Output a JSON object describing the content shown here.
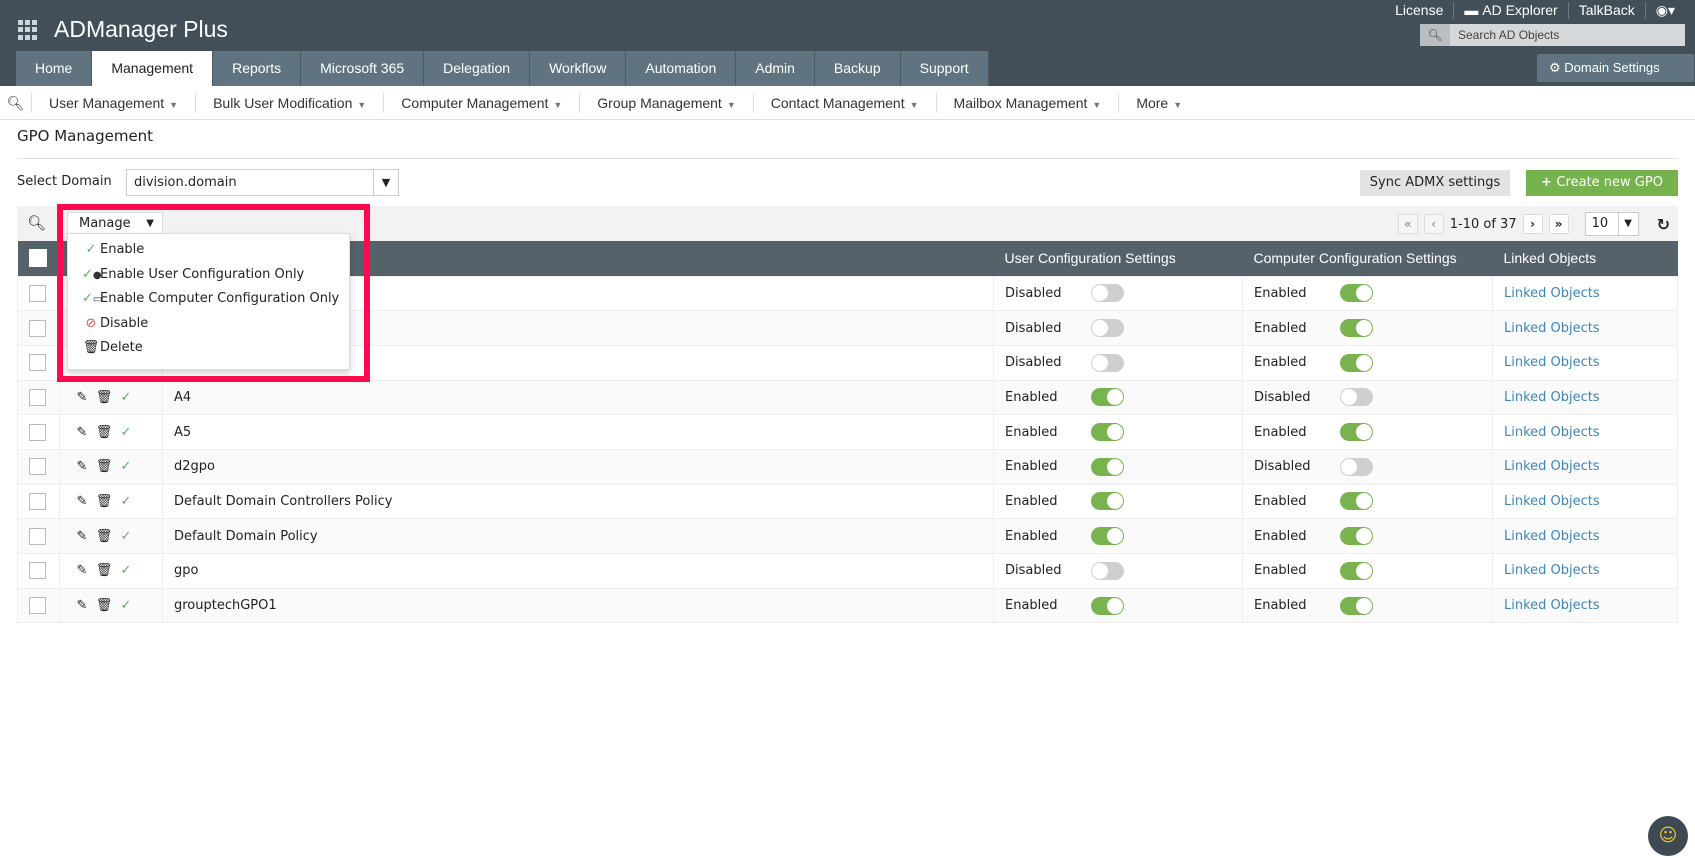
{
  "app": {
    "title": "ADManager Plus"
  },
  "top_links": [
    "License",
    "AD Explorer",
    "TalkBack"
  ],
  "search": {
    "placeholder": "Search AD Objects"
  },
  "tabs": [
    "Home",
    "Management",
    "Reports",
    "Microsoft 365",
    "Delegation",
    "Workflow",
    "Automation",
    "Admin",
    "Backup",
    "Support"
  ],
  "active_tab": "Management",
  "domain_settings": "Domain Settings",
  "subnav": [
    "User Management",
    "Bulk User Modification",
    "Computer Management",
    "Group Management",
    "Contact Management",
    "Mailbox Management",
    "More"
  ],
  "page": {
    "title": "GPO Management",
    "select_domain_label": "Select Domain",
    "domain": "division.domain",
    "sync_label": "Sync ADMX settings",
    "create_label": "Create new GPO"
  },
  "toolbar": {
    "manage_label": "Manage",
    "pager_text": "1-10 of 37",
    "page_size": "10"
  },
  "manage_menu": [
    "Enable",
    "Enable User Configuration Only",
    "Enable Computer Configuration Only",
    "Disable",
    "Delete"
  ],
  "columns": {
    "user": "User Configuration Settings",
    "computer": "Computer Configuration Settings",
    "linked": "Linked Objects"
  },
  "rows": [
    {
      "name": "",
      "user": "Disabled",
      "computer": "Enabled",
      "linked": "Linked Objects"
    },
    {
      "name": "",
      "user": "Disabled",
      "computer": "Enabled",
      "linked": "Linked Objects"
    },
    {
      "name": "",
      "user": "Disabled",
      "computer": "Enabled",
      "linked": "Linked Objects"
    },
    {
      "name": "A4",
      "user": "Enabled",
      "computer": "Disabled",
      "linked": "Linked Objects"
    },
    {
      "name": "A5",
      "user": "Enabled",
      "computer": "Enabled",
      "linked": "Linked Objects"
    },
    {
      "name": "d2gpo",
      "user": "Enabled",
      "computer": "Disabled",
      "linked": "Linked Objects"
    },
    {
      "name": "Default Domain Controllers Policy",
      "user": "Enabled",
      "computer": "Enabled",
      "linked": "Linked Objects"
    },
    {
      "name": "Default Domain Policy",
      "user": "Enabled",
      "computer": "Enabled",
      "linked": "Linked Objects"
    },
    {
      "name": "gpo",
      "user": "Disabled",
      "computer": "Enabled",
      "linked": "Linked Objects"
    },
    {
      "name": "grouptechGPO1",
      "user": "Enabled",
      "computer": "Enabled",
      "linked": "Linked Objects"
    }
  ],
  "colors": {
    "topbar": "#434f58",
    "tab": "#5f7480",
    "accent_green": "#77b34d",
    "highlight": "#ff0a4e",
    "link": "#3f85bb"
  }
}
